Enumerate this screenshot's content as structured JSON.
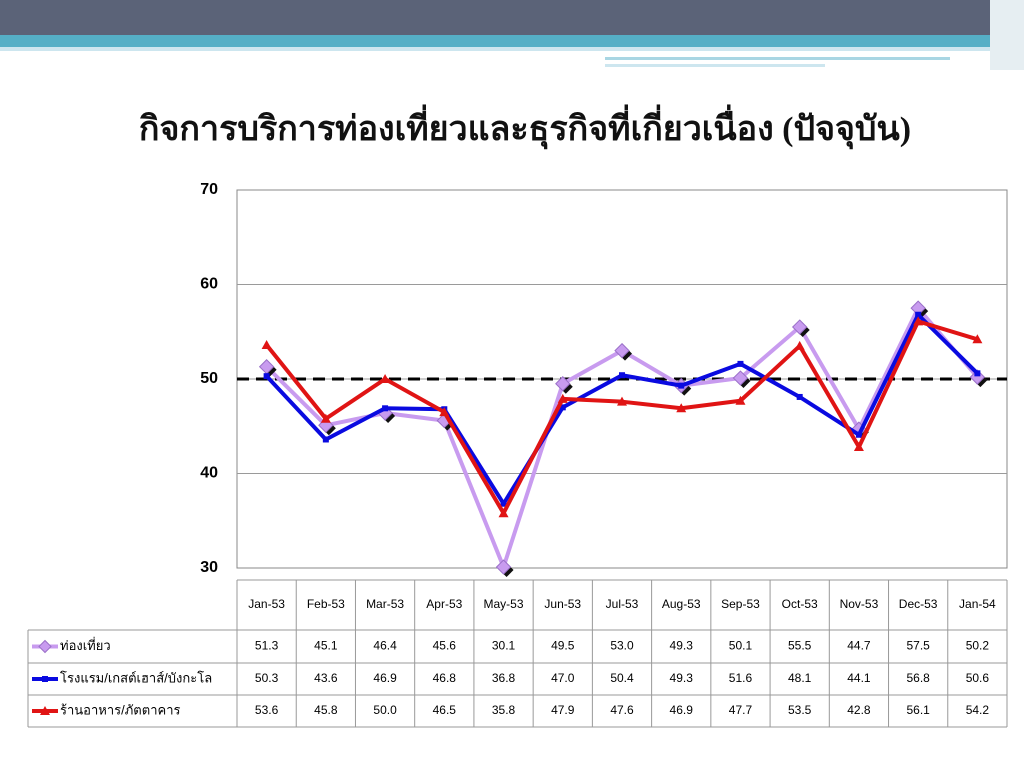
{
  "chart_data": {
    "type": "line",
    "title": "กิจการบริการท่องเที่ยวและธุรกิจที่เกี่ยวเนื่อง (ปัจจุบัน)",
    "categories": [
      "Jan-53",
      "Feb-53",
      "Mar-53",
      "Apr-53",
      "May-53",
      "Jun-53",
      "Jul-53",
      "Aug-53",
      "Sep-53",
      "Oct-53",
      "Nov-53",
      "Dec-53",
      "Jan-54"
    ],
    "series": [
      {
        "name": "ท่องเที่ยว",
        "color": "#c89bef",
        "marker": "diamond",
        "values": [
          51.3,
          45.1,
          46.4,
          45.6,
          30.1,
          49.5,
          53.0,
          49.3,
          50.1,
          55.5,
          44.7,
          57.5,
          50.2
        ],
        "value_labels": [
          "51.3",
          "45.1",
          "46.4",
          "45.6",
          "30.1",
          "49.5",
          "53.0",
          "49.3",
          "50.1",
          "55.5",
          "44.7",
          "57.5",
          "50.2"
        ]
      },
      {
        "name": "โรงแรม/เกสต์เฮาส์/บังกะโล",
        "color": "#0a0ae0",
        "marker": "square",
        "values": [
          50.3,
          43.6,
          46.9,
          46.8,
          36.8,
          47.0,
          50.4,
          49.3,
          51.6,
          48.1,
          44.1,
          56.8,
          50.6
        ],
        "value_labels": [
          "50.3",
          "43.6",
          "46.9",
          "46.8",
          "36.8",
          "47.0",
          "50.4",
          "49.3",
          "51.6",
          "48.1",
          "44.1",
          "56.8",
          "50.6"
        ]
      },
      {
        "name": "ร้านอาหาร/ภัตตาคาร",
        "color": "#e01414",
        "marker": "triangle",
        "values": [
          53.6,
          45.8,
          50.0,
          46.5,
          35.8,
          47.9,
          47.6,
          46.9,
          47.7,
          53.5,
          42.8,
          56.1,
          54.2
        ],
        "value_labels": [
          "53.6",
          "45.8",
          "50.0",
          "46.5",
          "35.8",
          "47.9",
          "47.6",
          "46.9",
          "47.7",
          "53.5",
          "42.8",
          "56.1",
          "54.2"
        ]
      }
    ],
    "ylim": [
      30,
      70
    ],
    "yticks": [
      30,
      40,
      50,
      60,
      70
    ],
    "grid": true,
    "reference_line": 50
  }
}
